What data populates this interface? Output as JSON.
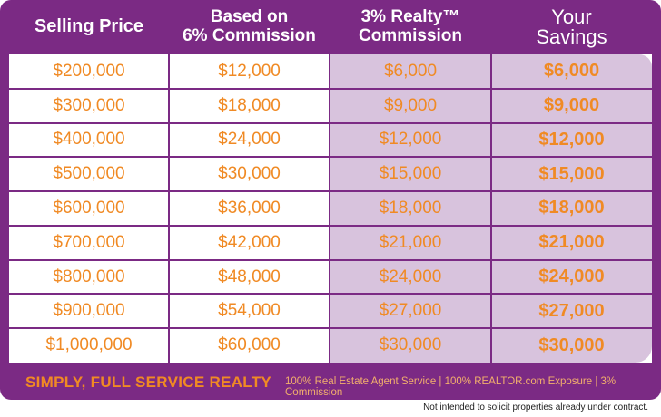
{
  "header": {
    "col1": "Selling Price",
    "col2": "Based on\n6% Commission",
    "col3": "3% Realty™\nCommission",
    "col4": "Your\nSavings"
  },
  "rows": [
    {
      "price": "$200,000",
      "six": "$12,000",
      "three": "$6,000",
      "savings": "$6,000"
    },
    {
      "price": "$300,000",
      "six": "$18,000",
      "three": "$9,000",
      "savings": "$9,000"
    },
    {
      "price": "$400,000",
      "six": "$24,000",
      "three": "$12,000",
      "savings": "$12,000"
    },
    {
      "price": "$500,000",
      "six": "$30,000",
      "three": "$15,000",
      "savings": "$15,000"
    },
    {
      "price": "$600,000",
      "six": "$36,000",
      "three": "$18,000",
      "savings": "$18,000"
    },
    {
      "price": "$700,000",
      "six": "$42,000",
      "three": "$21,000",
      "savings": "$21,000"
    },
    {
      "price": "$800,000",
      "six": "$48,000",
      "three": "$24,000",
      "savings": "$24,000"
    },
    {
      "price": "$900,000",
      "six": "$54,000",
      "three": "$27,000",
      "savings": "$27,000"
    },
    {
      "price": "$1,000,000",
      "six": "$60,000",
      "three": "$30,000",
      "savings": "$30,000"
    }
  ],
  "footer": {
    "tagline": "SIMPLY, FULL SERVICE REALTY",
    "features": "100% Real Estate Agent Service | 100% REALTOR.com Exposure | 3% Commission"
  },
  "disclaimer": "Not intended to solicit properties already under contract.",
  "colors": {
    "purple": "#7b2a84",
    "orange": "#f08a24",
    "lilac": "#d8c3dd"
  }
}
